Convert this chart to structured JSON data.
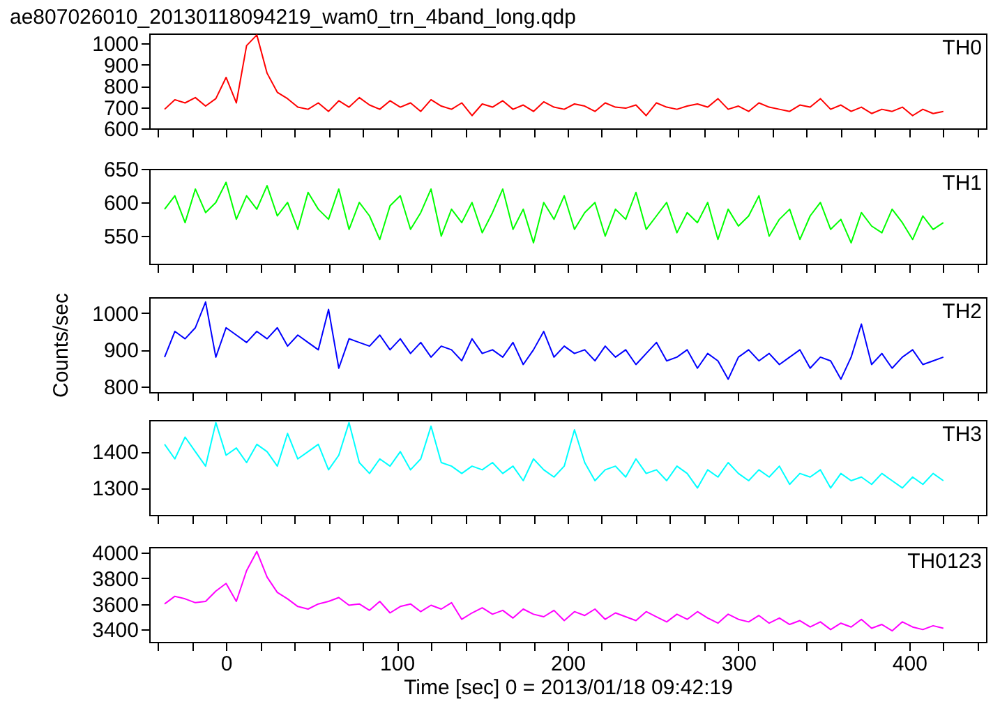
{
  "chart_data": [
    {
      "type": "line",
      "title": "ae807026010_20130118094219_wam0_trn_4band_long.qdp",
      "x": [
        -36,
        -30,
        -24,
        -18,
        -12,
        -6,
        0,
        6,
        12,
        18,
        24,
        30,
        36,
        42,
        48,
        54,
        60,
        66,
        72,
        78,
        84,
        90,
        96,
        102,
        108,
        114,
        120,
        126,
        132,
        138,
        144,
        150,
        156,
        162,
        168,
        174,
        180,
        186,
        192,
        198,
        204,
        210,
        216,
        222,
        228,
        234,
        240,
        246,
        252,
        258,
        264,
        270,
        276,
        282,
        288,
        294,
        300,
        306,
        312,
        318,
        324,
        330,
        336,
        342,
        348,
        354,
        360,
        366,
        372,
        378,
        384,
        390,
        396,
        402,
        408,
        414,
        420
      ],
      "xlim": [
        -45,
        445
      ],
      "xticks": [
        {
          "value": -40,
          "label": null
        },
        {
          "value": -20,
          "label": null
        },
        0,
        {
          "value": 20,
          "label": null
        },
        {
          "value": 40,
          "label": null
        },
        {
          "value": 60,
          "label": null
        },
        {
          "value": 80,
          "label": null
        },
        100,
        {
          "value": 120,
          "label": null
        },
        {
          "value": 140,
          "label": null
        },
        {
          "value": 160,
          "label": null
        },
        {
          "value": 180,
          "label": null
        },
        200,
        {
          "value": 220,
          "label": null
        },
        {
          "value": 240,
          "label": null
        },
        {
          "value": 260,
          "label": null
        },
        {
          "value": 280,
          "label": null
        },
        300,
        {
          "value": 320,
          "label": null
        },
        {
          "value": 340,
          "label": null
        },
        {
          "value": 360,
          "label": null
        },
        {
          "value": 380,
          "label": null
        },
        400,
        {
          "value": 420,
          "label": null
        },
        {
          "value": 440,
          "label": null
        }
      ],
      "ylim": [
        600,
        1047
      ],
      "yticks": [
        600,
        700,
        800,
        900,
        1000
      ],
      "tick_labels": "y",
      "series": [
        {
          "name": "TH0",
          "color": "#ff0000",
          "values": [
            690,
            735,
            720,
            745,
            705,
            740,
            840,
            720,
            990,
            1040,
            860,
            770,
            740,
            700,
            690,
            720,
            680,
            730,
            700,
            745,
            710,
            690,
            730,
            700,
            720,
            680,
            735,
            705,
            690,
            720,
            660,
            715,
            700,
            730,
            690,
            710,
            680,
            725,
            700,
            690,
            715,
            705,
            680,
            720,
            700,
            695,
            710,
            660,
            720,
            700,
            690,
            705,
            715,
            700,
            740,
            690,
            705,
            680,
            720,
            700,
            690,
            680,
            710,
            700,
            740,
            690,
            710,
            680,
            700,
            670,
            690,
            680,
            700,
            660,
            690,
            670,
            680
          ]
        }
      ]
    },
    {
      "type": "line",
      "x": [
        -36,
        -30,
        -24,
        -18,
        -12,
        -6,
        0,
        6,
        12,
        18,
        24,
        30,
        36,
        42,
        48,
        54,
        60,
        66,
        72,
        78,
        84,
        90,
        96,
        102,
        108,
        114,
        120,
        126,
        132,
        138,
        144,
        150,
        156,
        162,
        168,
        174,
        180,
        186,
        192,
        198,
        204,
        210,
        216,
        222,
        228,
        234,
        240,
        246,
        252,
        258,
        264,
        270,
        276,
        282,
        288,
        294,
        300,
        306,
        312,
        318,
        324,
        330,
        336,
        342,
        348,
        354,
        360,
        366,
        372,
        378,
        384,
        390,
        396,
        402,
        408,
        414,
        420
      ],
      "xlim": [
        -45,
        445
      ],
      "xticks": [
        {
          "value": -40,
          "label": null
        },
        {
          "value": -20,
          "label": null
        },
        0,
        {
          "value": 20,
          "label": null
        },
        {
          "value": 40,
          "label": null
        },
        {
          "value": 60,
          "label": null
        },
        {
          "value": 80,
          "label": null
        },
        100,
        {
          "value": 120,
          "label": null
        },
        {
          "value": 140,
          "label": null
        },
        {
          "value": 160,
          "label": null
        },
        {
          "value": 180,
          "label": null
        },
        200,
        {
          "value": 220,
          "label": null
        },
        {
          "value": 240,
          "label": null
        },
        {
          "value": 260,
          "label": null
        },
        {
          "value": 280,
          "label": null
        },
        300,
        {
          "value": 320,
          "label": null
        },
        {
          "value": 340,
          "label": null
        },
        {
          "value": 360,
          "label": null
        },
        {
          "value": 380,
          "label": null
        },
        400,
        {
          "value": 420,
          "label": null
        },
        {
          "value": 440,
          "label": null
        }
      ],
      "ylim": [
        509,
        650
      ],
      "yticks": [
        550,
        600,
        650
      ],
      "tick_labels": "y",
      "series": [
        {
          "name": "TH1",
          "color": "#00ff00",
          "values": [
            590,
            610,
            570,
            620,
            585,
            600,
            630,
            575,
            610,
            590,
            625,
            580,
            600,
            560,
            615,
            590,
            575,
            620,
            560,
            600,
            580,
            545,
            595,
            610,
            560,
            585,
            620,
            550,
            590,
            570,
            600,
            555,
            585,
            620,
            560,
            590,
            540,
            600,
            575,
            610,
            560,
            585,
            600,
            550,
            590,
            575,
            615,
            560,
            580,
            600,
            555,
            585,
            570,
            600,
            545,
            590,
            565,
            580,
            610,
            550,
            575,
            590,
            545,
            580,
            600,
            560,
            575,
            540,
            585,
            565,
            555,
            590,
            570,
            545,
            580,
            560,
            570
          ]
        }
      ]
    },
    {
      "type": "line",
      "ylabel": "Counts/sec",
      "x": [
        -36,
        -30,
        -24,
        -18,
        -12,
        -6,
        0,
        6,
        12,
        18,
        24,
        30,
        36,
        42,
        48,
        54,
        60,
        66,
        72,
        78,
        84,
        90,
        96,
        102,
        108,
        114,
        120,
        126,
        132,
        138,
        144,
        150,
        156,
        162,
        168,
        174,
        180,
        186,
        192,
        198,
        204,
        210,
        216,
        222,
        228,
        234,
        240,
        246,
        252,
        258,
        264,
        270,
        276,
        282,
        288,
        294,
        300,
        306,
        312,
        318,
        324,
        330,
        336,
        342,
        348,
        354,
        360,
        366,
        372,
        378,
        384,
        390,
        396,
        402,
        408,
        414,
        420
      ],
      "xlim": [
        -45,
        445
      ],
      "xticks": [
        {
          "value": -40,
          "label": null
        },
        {
          "value": -20,
          "label": null
        },
        0,
        {
          "value": 20,
          "label": null
        },
        {
          "value": 40,
          "label": null
        },
        {
          "value": 60,
          "label": null
        },
        {
          "value": 80,
          "label": null
        },
        100,
        {
          "value": 120,
          "label": null
        },
        {
          "value": 140,
          "label": null
        },
        {
          "value": 160,
          "label": null
        },
        {
          "value": 180,
          "label": null
        },
        200,
        {
          "value": 220,
          "label": null
        },
        {
          "value": 240,
          "label": null
        },
        {
          "value": 260,
          "label": null
        },
        {
          "value": 280,
          "label": null
        },
        300,
        {
          "value": 320,
          "label": null
        },
        {
          "value": 340,
          "label": null
        },
        {
          "value": 360,
          "label": null
        },
        {
          "value": 380,
          "label": null
        },
        400,
        {
          "value": 420,
          "label": null
        },
        {
          "value": 440,
          "label": null
        }
      ],
      "ylim": [
        785,
        1043
      ],
      "yticks": [
        800,
        900,
        1000
      ],
      "tick_labels": "y",
      "series": [
        {
          "name": "TH2",
          "color": "#0000ff",
          "values": [
            880,
            950,
            930,
            960,
            1030,
            880,
            960,
            940,
            920,
            950,
            930,
            960,
            910,
            940,
            920,
            900,
            1010,
            850,
            930,
            920,
            910,
            940,
            900,
            930,
            890,
            920,
            880,
            910,
            900,
            870,
            930,
            890,
            900,
            880,
            920,
            860,
            900,
            950,
            880,
            910,
            890,
            900,
            870,
            910,
            880,
            900,
            860,
            890,
            920,
            870,
            880,
            900,
            850,
            890,
            870,
            820,
            880,
            900,
            870,
            890,
            860,
            880,
            900,
            850,
            880,
            870,
            820,
            880,
            970,
            860,
            890,
            850,
            880,
            900,
            860,
            870,
            880
          ]
        }
      ]
    },
    {
      "type": "line",
      "x": [
        -36,
        -30,
        -24,
        -18,
        -12,
        -6,
        0,
        6,
        12,
        18,
        24,
        30,
        36,
        42,
        48,
        54,
        60,
        66,
        72,
        78,
        84,
        90,
        96,
        102,
        108,
        114,
        120,
        126,
        132,
        138,
        144,
        150,
        156,
        162,
        168,
        174,
        180,
        186,
        192,
        198,
        204,
        210,
        216,
        222,
        228,
        234,
        240,
        246,
        252,
        258,
        264,
        270,
        276,
        282,
        288,
        294,
        300,
        306,
        312,
        318,
        324,
        330,
        336,
        342,
        348,
        354,
        360,
        366,
        372,
        378,
        384,
        390,
        396,
        402,
        408,
        414,
        420
      ],
      "xlim": [
        -45,
        445
      ],
      "xticks": [
        {
          "value": -40,
          "label": null
        },
        {
          "value": -20,
          "label": null
        },
        0,
        {
          "value": 20,
          "label": null
        },
        {
          "value": 40,
          "label": null
        },
        {
          "value": 60,
          "label": null
        },
        {
          "value": 80,
          "label": null
        },
        100,
        {
          "value": 120,
          "label": null
        },
        {
          "value": 140,
          "label": null
        },
        {
          "value": 160,
          "label": null
        },
        {
          "value": 180,
          "label": null
        },
        200,
        {
          "value": 220,
          "label": null
        },
        {
          "value": 240,
          "label": null
        },
        {
          "value": 260,
          "label": null
        },
        {
          "value": 280,
          "label": null
        },
        300,
        {
          "value": 320,
          "label": null
        },
        {
          "value": 340,
          "label": null
        },
        {
          "value": 360,
          "label": null
        },
        {
          "value": 380,
          "label": null
        },
        400,
        {
          "value": 420,
          "label": null
        },
        {
          "value": 440,
          "label": null
        }
      ],
      "ylim": [
        1226,
        1487
      ],
      "yticks": [
        1300,
        1400
      ],
      "tick_labels": "y",
      "series": [
        {
          "name": "TH3",
          "color": "#00ffff",
          "values": [
            1420,
            1380,
            1440,
            1400,
            1360,
            1480,
            1390,
            1410,
            1370,
            1420,
            1400,
            1360,
            1450,
            1380,
            1400,
            1420,
            1350,
            1390,
            1480,
            1370,
            1340,
            1380,
            1360,
            1400,
            1350,
            1380,
            1470,
            1370,
            1360,
            1340,
            1360,
            1350,
            1370,
            1340,
            1360,
            1320,
            1380,
            1350,
            1330,
            1360,
            1460,
            1370,
            1320,
            1350,
            1360,
            1330,
            1380,
            1340,
            1350,
            1320,
            1360,
            1340,
            1300,
            1350,
            1330,
            1370,
            1340,
            1320,
            1350,
            1330,
            1360,
            1310,
            1340,
            1330,
            1350,
            1300,
            1340,
            1320,
            1330,
            1310,
            1340,
            1320,
            1300,
            1330,
            1310,
            1340,
            1320
          ]
        }
      ]
    },
    {
      "type": "line",
      "xlabel": "Time [sec] 0 = 2013/01/18 09:42:19",
      "x": [
        -36,
        -30,
        -24,
        -18,
        -12,
        -6,
        0,
        6,
        12,
        18,
        24,
        30,
        36,
        42,
        48,
        54,
        60,
        66,
        72,
        78,
        84,
        90,
        96,
        102,
        108,
        114,
        120,
        126,
        132,
        138,
        144,
        150,
        156,
        162,
        168,
        174,
        180,
        186,
        192,
        198,
        204,
        210,
        216,
        222,
        228,
        234,
        240,
        246,
        252,
        258,
        264,
        270,
        276,
        282,
        288,
        294,
        300,
        306,
        312,
        318,
        324,
        330,
        336,
        342,
        348,
        354,
        360,
        366,
        372,
        378,
        384,
        390,
        396,
        402,
        408,
        414,
        420
      ],
      "xlim": [
        -45,
        445
      ],
      "xticks": [
        {
          "value": -40,
          "label": null
        },
        {
          "value": -20,
          "label": null
        },
        0,
        {
          "value": 20,
          "label": null
        },
        {
          "value": 40,
          "label": null
        },
        {
          "value": 60,
          "label": null
        },
        {
          "value": 80,
          "label": null
        },
        100,
        {
          "value": 120,
          "label": null
        },
        {
          "value": 140,
          "label": null
        },
        {
          "value": 160,
          "label": null
        },
        {
          "value": 180,
          "label": null
        },
        200,
        {
          "value": 220,
          "label": null
        },
        {
          "value": 240,
          "label": null
        },
        {
          "value": 260,
          "label": null
        },
        {
          "value": 280,
          "label": null
        },
        300,
        {
          "value": 320,
          "label": null
        },
        {
          "value": 340,
          "label": null
        },
        {
          "value": 360,
          "label": null
        },
        {
          "value": 380,
          "label": null
        },
        400,
        {
          "value": 420,
          "label": null
        },
        {
          "value": 440,
          "label": null
        }
      ],
      "ylim": [
        3304,
        4045
      ],
      "yticks": [
        3400,
        3600,
        3800,
        4000
      ],
      "series": [
        {
          "name": "TH0123",
          "color": "#ff00ff",
          "values": [
            3600,
            3660,
            3640,
            3610,
            3620,
            3700,
            3760,
            3620,
            3860,
            4010,
            3810,
            3690,
            3640,
            3580,
            3560,
            3600,
            3620,
            3650,
            3590,
            3600,
            3550,
            3620,
            3530,
            3580,
            3600,
            3540,
            3590,
            3560,
            3610,
            3480,
            3530,
            3570,
            3520,
            3550,
            3490,
            3560,
            3520,
            3500,
            3550,
            3470,
            3540,
            3510,
            3560,
            3480,
            3530,
            3500,
            3470,
            3540,
            3500,
            3460,
            3520,
            3480,
            3540,
            3490,
            3450,
            3520,
            3480,
            3460,
            3510,
            3450,
            3490,
            3440,
            3470,
            3420,
            3460,
            3400,
            3450,
            3420,
            3480,
            3410,
            3440,
            3390,
            3460,
            3420,
            3400,
            3430,
            3410
          ]
        }
      ]
    }
  ]
}
